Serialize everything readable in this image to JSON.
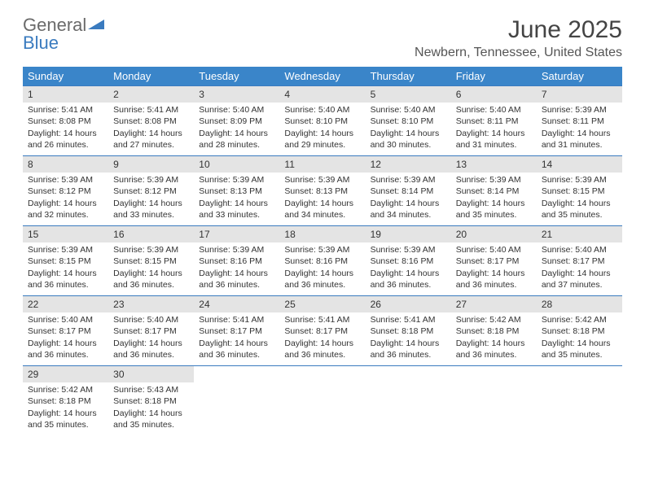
{
  "brand": {
    "word1": "General",
    "word2": "Blue"
  },
  "title": "June 2025",
  "location": "Newbern, Tennessee, United States",
  "colors": {
    "header_bg": "#3a85c9",
    "header_text": "#ffffff",
    "rule": "#3a7bbf",
    "daynum_bg": "#e4e4e4",
    "brand_gray": "#6a6a6a",
    "brand_blue": "#3a7bbf"
  },
  "weekdays": [
    "Sunday",
    "Monday",
    "Tuesday",
    "Wednesday",
    "Thursday",
    "Friday",
    "Saturday"
  ],
  "cell_font_size_pt": 8,
  "header_font_size_pt": 10,
  "weeks": [
    [
      {
        "n": "1",
        "sr": "5:41 AM",
        "ss": "8:08 PM",
        "dl": "14 hours and 26 minutes."
      },
      {
        "n": "2",
        "sr": "5:41 AM",
        "ss": "8:08 PM",
        "dl": "14 hours and 27 minutes."
      },
      {
        "n": "3",
        "sr": "5:40 AM",
        "ss": "8:09 PM",
        "dl": "14 hours and 28 minutes."
      },
      {
        "n": "4",
        "sr": "5:40 AM",
        "ss": "8:10 PM",
        "dl": "14 hours and 29 minutes."
      },
      {
        "n": "5",
        "sr": "5:40 AM",
        "ss": "8:10 PM",
        "dl": "14 hours and 30 minutes."
      },
      {
        "n": "6",
        "sr": "5:40 AM",
        "ss": "8:11 PM",
        "dl": "14 hours and 31 minutes."
      },
      {
        "n": "7",
        "sr": "5:39 AM",
        "ss": "8:11 PM",
        "dl": "14 hours and 31 minutes."
      }
    ],
    [
      {
        "n": "8",
        "sr": "5:39 AM",
        "ss": "8:12 PM",
        "dl": "14 hours and 32 minutes."
      },
      {
        "n": "9",
        "sr": "5:39 AM",
        "ss": "8:12 PM",
        "dl": "14 hours and 33 minutes."
      },
      {
        "n": "10",
        "sr": "5:39 AM",
        "ss": "8:13 PM",
        "dl": "14 hours and 33 minutes."
      },
      {
        "n": "11",
        "sr": "5:39 AM",
        "ss": "8:13 PM",
        "dl": "14 hours and 34 minutes."
      },
      {
        "n": "12",
        "sr": "5:39 AM",
        "ss": "8:14 PM",
        "dl": "14 hours and 34 minutes."
      },
      {
        "n": "13",
        "sr": "5:39 AM",
        "ss": "8:14 PM",
        "dl": "14 hours and 35 minutes."
      },
      {
        "n": "14",
        "sr": "5:39 AM",
        "ss": "8:15 PM",
        "dl": "14 hours and 35 minutes."
      }
    ],
    [
      {
        "n": "15",
        "sr": "5:39 AM",
        "ss": "8:15 PM",
        "dl": "14 hours and 36 minutes."
      },
      {
        "n": "16",
        "sr": "5:39 AM",
        "ss": "8:15 PM",
        "dl": "14 hours and 36 minutes."
      },
      {
        "n": "17",
        "sr": "5:39 AM",
        "ss": "8:16 PM",
        "dl": "14 hours and 36 minutes."
      },
      {
        "n": "18",
        "sr": "5:39 AM",
        "ss": "8:16 PM",
        "dl": "14 hours and 36 minutes."
      },
      {
        "n": "19",
        "sr": "5:39 AM",
        "ss": "8:16 PM",
        "dl": "14 hours and 36 minutes."
      },
      {
        "n": "20",
        "sr": "5:40 AM",
        "ss": "8:17 PM",
        "dl": "14 hours and 36 minutes."
      },
      {
        "n": "21",
        "sr": "5:40 AM",
        "ss": "8:17 PM",
        "dl": "14 hours and 37 minutes."
      }
    ],
    [
      {
        "n": "22",
        "sr": "5:40 AM",
        "ss": "8:17 PM",
        "dl": "14 hours and 36 minutes."
      },
      {
        "n": "23",
        "sr": "5:40 AM",
        "ss": "8:17 PM",
        "dl": "14 hours and 36 minutes."
      },
      {
        "n": "24",
        "sr": "5:41 AM",
        "ss": "8:17 PM",
        "dl": "14 hours and 36 minutes."
      },
      {
        "n": "25",
        "sr": "5:41 AM",
        "ss": "8:17 PM",
        "dl": "14 hours and 36 minutes."
      },
      {
        "n": "26",
        "sr": "5:41 AM",
        "ss": "8:18 PM",
        "dl": "14 hours and 36 minutes."
      },
      {
        "n": "27",
        "sr": "5:42 AM",
        "ss": "8:18 PM",
        "dl": "14 hours and 36 minutes."
      },
      {
        "n": "28",
        "sr": "5:42 AM",
        "ss": "8:18 PM",
        "dl": "14 hours and 35 minutes."
      }
    ],
    [
      {
        "n": "29",
        "sr": "5:42 AM",
        "ss": "8:18 PM",
        "dl": "14 hours and 35 minutes."
      },
      {
        "n": "30",
        "sr": "5:43 AM",
        "ss": "8:18 PM",
        "dl": "14 hours and 35 minutes."
      },
      null,
      null,
      null,
      null,
      null
    ]
  ],
  "labels": {
    "sunrise": "Sunrise: ",
    "sunset": "Sunset: ",
    "daylight": "Daylight: "
  }
}
